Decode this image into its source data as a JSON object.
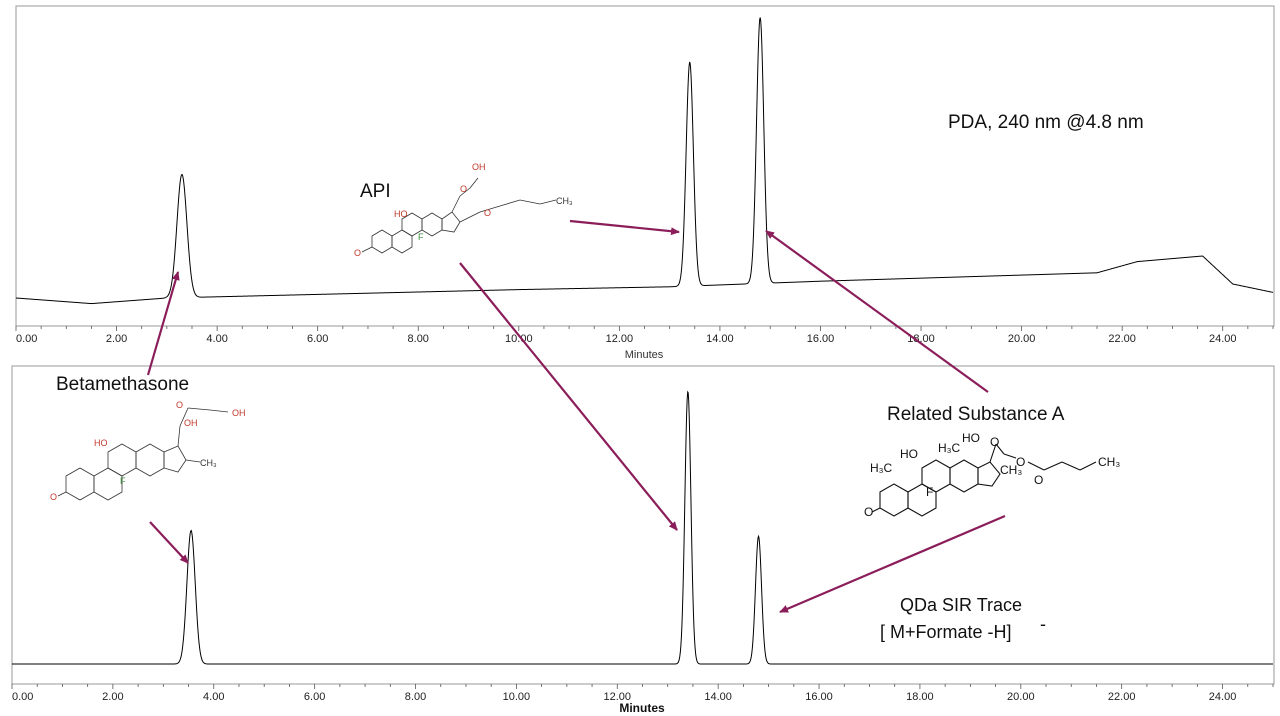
{
  "colors": {
    "trace": "#000000",
    "arrow": "#8b1e5a",
    "frame": "#9a9a9a",
    "chem_red": "#c0392b",
    "chem_green": "#3a8f3a"
  },
  "annotations": {
    "api": "API",
    "betamethasone": "Betamethasone",
    "related_substance": "Related Substance A",
    "pda": "PDA, 240 nm @4.8 nm",
    "qda_line1": "QDa SIR Trace",
    "qda_line2": "[ M+Formate -H]",
    "qda_sup": "-"
  },
  "chart_data": [
    {
      "name": "pda-chromatogram",
      "type": "line",
      "xlabel": "Minutes",
      "xlim": [
        0,
        25
      ],
      "x_ticks": [
        "0.00",
        "2.00",
        "4.00",
        "6.00",
        "8.00",
        "10.00",
        "12.00",
        "14.00",
        "16.00",
        "18.00",
        "20.00",
        "22.00",
        "24.00"
      ],
      "ylim": [
        0,
        1
      ],
      "baseline": [
        [
          0,
          0.0
        ],
        [
          1.5,
          -0.02
        ],
        [
          3,
          0.0
        ],
        [
          10,
          0.03
        ],
        [
          13,
          0.04
        ],
        [
          16,
          0.06
        ],
        [
          21.5,
          0.09
        ],
        [
          22.3,
          0.13
        ],
        [
          23.6,
          0.15
        ],
        [
          24.2,
          0.05
        ],
        [
          25,
          0.02
        ]
      ],
      "peaks": [
        {
          "label": "Betamethasone",
          "rt": 3.3,
          "height": 0.44
        },
        {
          "label": "API",
          "rt": 13.4,
          "height": 0.8
        },
        {
          "label": "Related Substance A",
          "rt": 14.8,
          "height": 0.95
        }
      ],
      "annotation": "PDA, 240 nm @4.8 nm"
    },
    {
      "name": "qda-sir-chromatogram",
      "type": "line",
      "xlabel": "Minutes",
      "xlim": [
        0,
        25
      ],
      "x_ticks": [
        "0.00",
        "2.00",
        "4.00",
        "6.00",
        "8.00",
        "10.00",
        "12.00",
        "14.00",
        "16.00",
        "18.00",
        "20.00",
        "22.00",
        "24.00"
      ],
      "ylim": [
        0,
        1
      ],
      "baseline": [
        [
          0,
          0.0
        ],
        [
          25,
          0.0
        ]
      ],
      "peaks": [
        {
          "label": "Betamethasone",
          "rt": 3.55,
          "height": 0.47
        },
        {
          "label": "API",
          "rt": 13.4,
          "height": 0.96
        },
        {
          "label": "Related Substance A",
          "rt": 14.8,
          "height": 0.45
        }
      ],
      "annotation": "QDa SIR Trace [ M+Formate -H] -"
    }
  ]
}
